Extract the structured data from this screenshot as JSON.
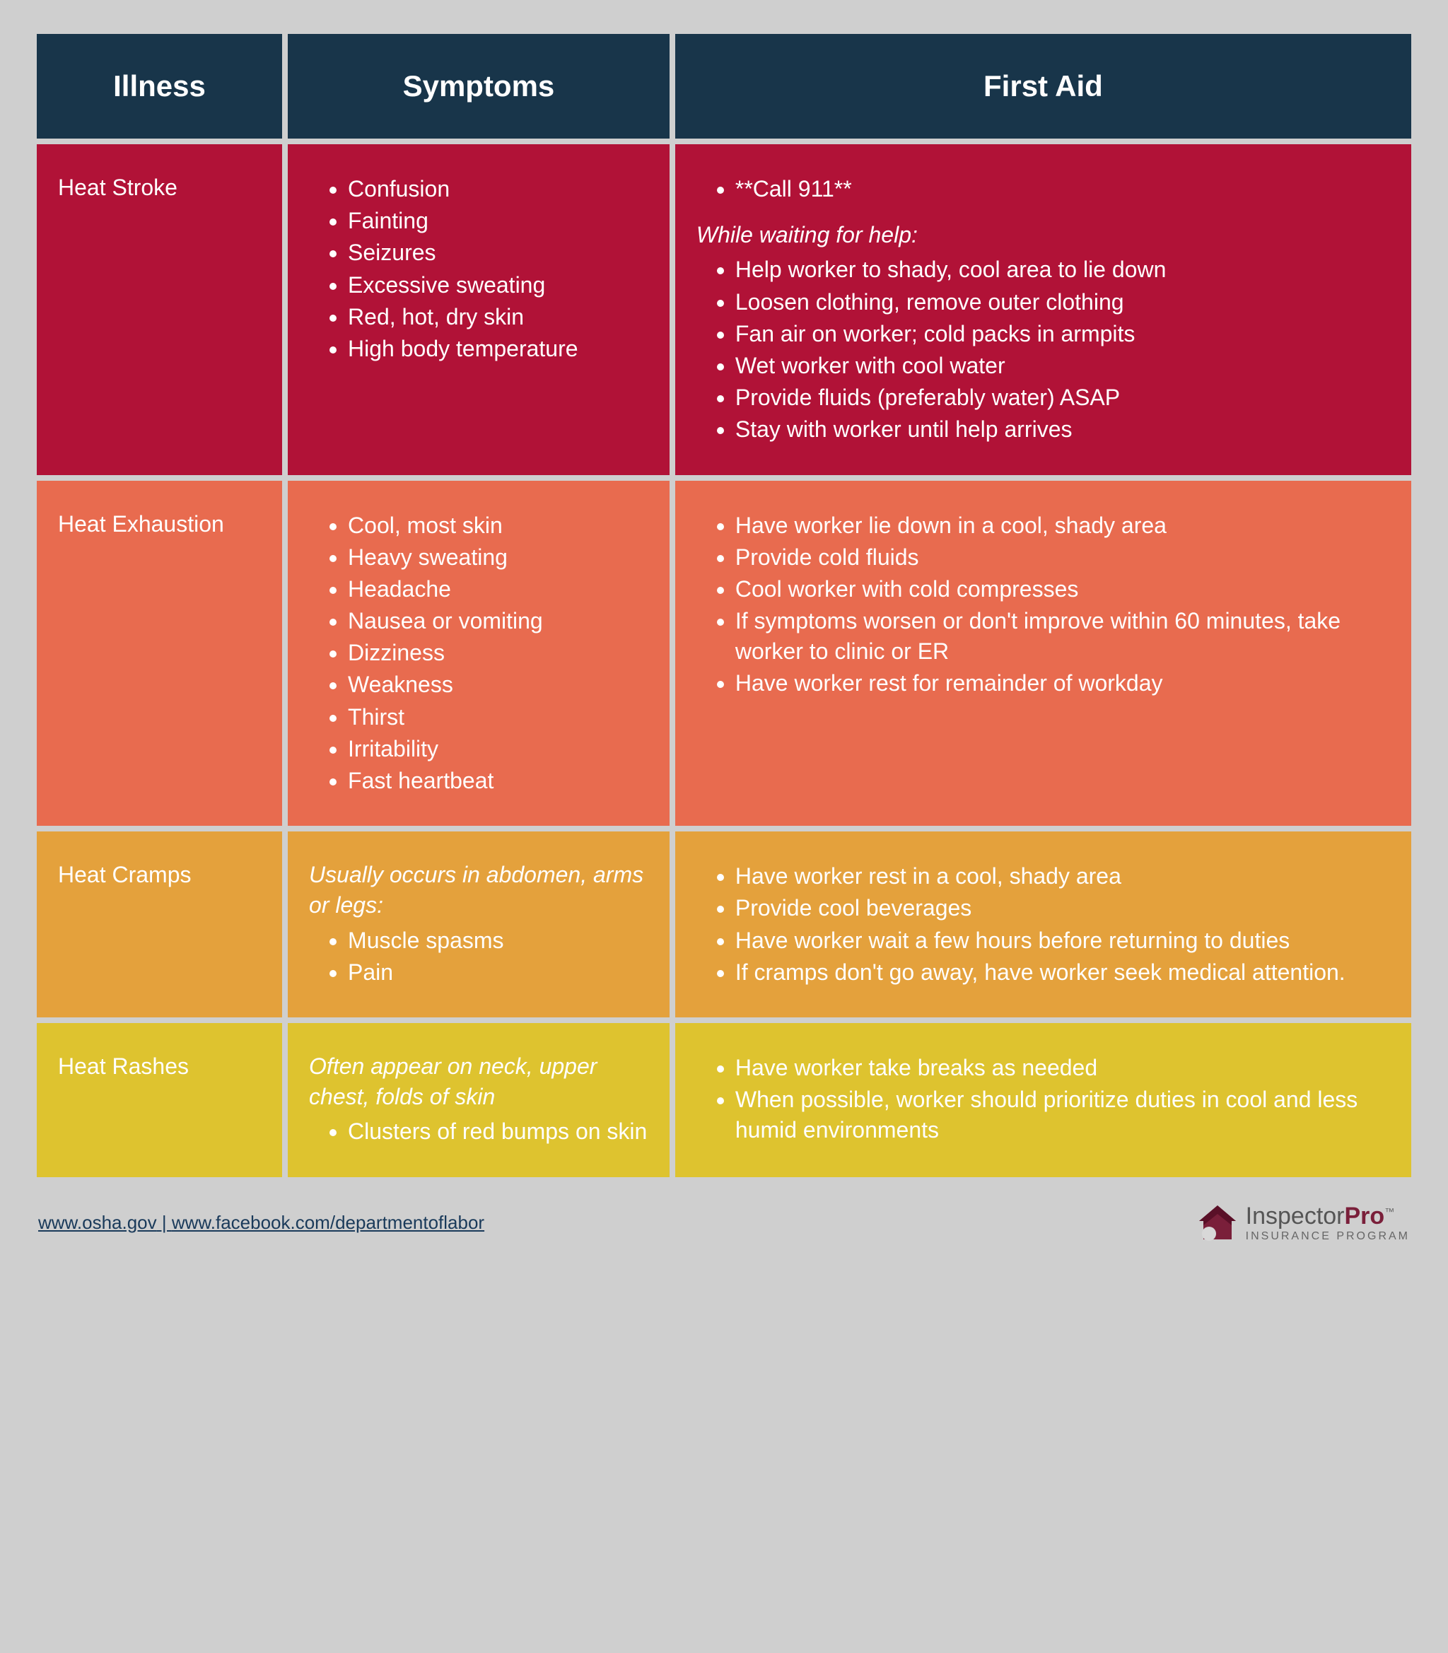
{
  "colors": {
    "page_bg": "#cfcfcf",
    "header_bg": "#18354a",
    "cell_gap": "#cfcfcf"
  },
  "header": {
    "illness": "Illness",
    "symptoms": "Symptoms",
    "firstaid": "First Aid"
  },
  "rows": [
    {
      "bg": "#b11237",
      "illness": "Heat Stroke",
      "symptoms_lead": "",
      "symptoms": [
        "Confusion",
        "Fainting",
        "Seizures",
        "Excessive sweating",
        "Red, hot, dry skin",
        "High body temperature"
      ],
      "firstaid_top": [
        "**Call 911**"
      ],
      "firstaid_lead": "While waiting for help:",
      "firstaid": [
        "Help worker to shady, cool area to lie down",
        "Loosen clothing, remove outer clothing",
        "Fan air on worker; cold packs in armpits",
        "Wet worker with cool water",
        "Provide fluids (preferably water) ASAP",
        "Stay with worker until help arrives"
      ]
    },
    {
      "bg": "#e86b4f",
      "illness": "Heat Exhaustion",
      "symptoms_lead": "",
      "symptoms": [
        "Cool, most skin",
        "Heavy sweating",
        "Headache",
        "Nausea or vomiting",
        "Dizziness",
        "Weakness",
        "Thirst",
        "Irritability",
        "Fast heartbeat"
      ],
      "firstaid_top": [],
      "firstaid_lead": "",
      "firstaid": [
        "Have worker lie down in a cool, shady area",
        "Provide cold fluids",
        "Cool worker with cold compresses",
        "If symptoms worsen or don't improve within 60 minutes, take worker to clinic or ER",
        "Have worker rest for remainder of workday"
      ]
    },
    {
      "bg": "#e4a13c",
      "illness": "Heat Cramps",
      "symptoms_lead": "Usually occurs in abdomen, arms or legs:",
      "symptoms": [
        "Muscle spasms",
        "Pain"
      ],
      "firstaid_top": [],
      "firstaid_lead": "",
      "firstaid": [
        "Have worker rest in a cool, shady area",
        "Provide cool beverages",
        "Have worker wait a few hours before returning to duties",
        "If cramps don't go away, have worker seek medical attention."
      ]
    },
    {
      "bg": "#dec32f",
      "illness": "Heat Rashes",
      "symptoms_lead": "Often appear on neck, upper chest, folds of skin",
      "symptoms": [
        "Clusters of red bumps on skin"
      ],
      "firstaid_top": [],
      "firstaid_lead": "",
      "firstaid": [
        "Have worker take breaks as needed",
        "When possible, worker should prioritize duties in cool and less humid environments"
      ]
    }
  ],
  "footer": {
    "link1": "www.osha.gov",
    "sep": " | ",
    "link2": "www.facebook.com/departmentoflabor",
    "logo_prefix": "Inspector",
    "logo_suffix": "Pro",
    "logo_tm": "™",
    "logo_sub": "INSURANCE PROGRAM"
  }
}
